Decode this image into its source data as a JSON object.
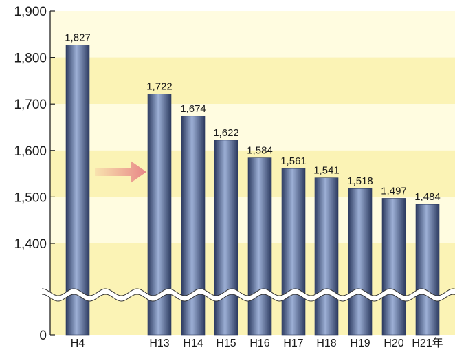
{
  "chart_data": {
    "type": "bar",
    "title": "",
    "xlabel": "",
    "ylabel": "",
    "categories": [
      "H4",
      "H13",
      "H14",
      "H15",
      "H16",
      "H17",
      "H18",
      "H19",
      "H20",
      "H21年"
    ],
    "values": [
      1827,
      1722,
      1674,
      1622,
      1584,
      1561,
      1541,
      1518,
      1497,
      1484
    ],
    "value_labels": [
      "1,827",
      "1,722",
      "1,674",
      "1,622",
      "1,584",
      "1,561",
      "1,541",
      "1,518",
      "1,497",
      "1,484"
    ],
    "yticks": [
      0,
      1400,
      1500,
      1600,
      1700,
      1800,
      1900
    ],
    "ytick_labels": [
      "0",
      "1,400",
      "1,500",
      "1,600",
      "1,700",
      "1,800",
      "1,900"
    ],
    "ylim": [
      0,
      1900
    ],
    "axis_break": true,
    "gap_after_first_bar": true,
    "grid": false,
    "legend": "none",
    "colors": {
      "bar": "#5a6e9a",
      "bar_highlight": "#9db0d6",
      "bar_shadow": "#2d3b60",
      "band_light": "#fffce0",
      "band_dark": "#fbf3b5",
      "arrow": "#e88787"
    }
  }
}
